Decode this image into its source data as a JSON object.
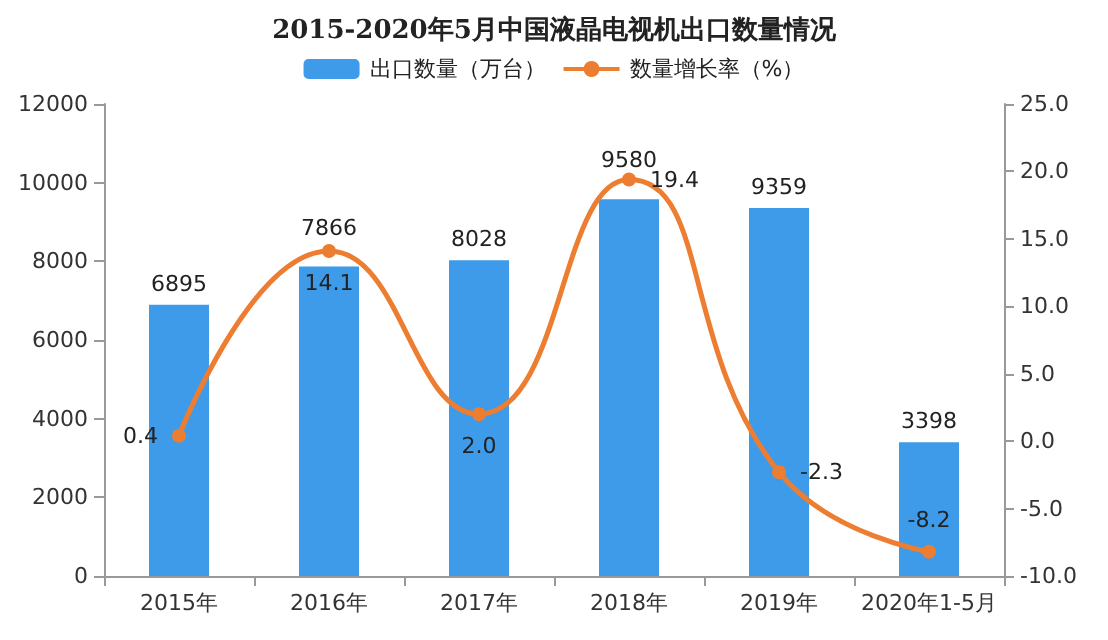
{
  "chart_data": {
    "type": "bar",
    "title": "2015-2020年5月中国液晶电视机出口数量情况",
    "categories": [
      "2015年",
      "2016年",
      "2017年",
      "2018年",
      "2019年",
      "2020年1-5月"
    ],
    "series": [
      {
        "name": "出口数量（万台）",
        "color": "#3d9be9",
        "values": [
          6895,
          7866,
          8028,
          9580,
          9359,
          3398
        ]
      },
      {
        "name": "数量增长率（%）",
        "type": "line",
        "axis": "y2",
        "color": "#ed7d31",
        "values": [
          0.4,
          14.1,
          2.0,
          19.4,
          -2.3,
          -8.2
        ],
        "value_labels": [
          "0.4",
          "14.1",
          "2.0",
          "19.4",
          "-2.3",
          "-8.2"
        ]
      }
    ],
    "data_labels": true,
    "ylim": [
      0,
      12000
    ],
    "yticks": [
      0,
      2000,
      4000,
      6000,
      8000,
      10000,
      12000
    ],
    "y2lim": [
      -10,
      25
    ],
    "y2ticks": [
      {
        "value": -10,
        "label": "-10.0"
      },
      {
        "value": -5,
        "label": "-5.0"
      },
      {
        "value": 0,
        "label": "0.0"
      },
      {
        "value": 5,
        "label": "5.0"
      },
      {
        "value": 10,
        "label": "10.0"
      },
      {
        "value": 15,
        "label": "15.0"
      },
      {
        "value": 20,
        "label": "20.0"
      },
      {
        "value": 25,
        "label": "25.0"
      }
    ],
    "legend": "top",
    "marker": "circle",
    "grid": false
  }
}
